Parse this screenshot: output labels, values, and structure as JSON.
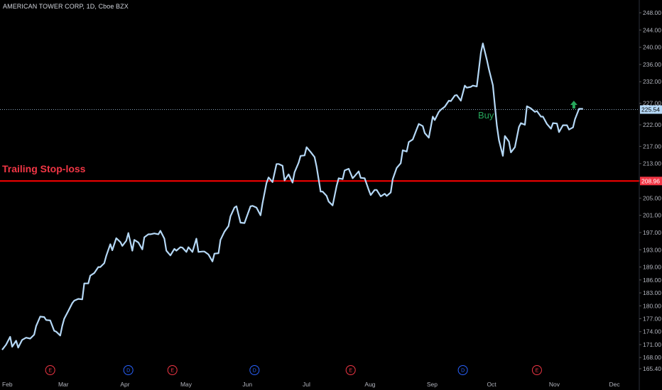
{
  "header": {
    "title": "AMERICAN TOWER CORP, 1D, Cboe BZX"
  },
  "chart_data": {
    "type": "line",
    "title": "AMERICAN TOWER CORP, 1D, Cboe BZX",
    "xlabel": "",
    "ylabel": "",
    "ylim": [
      164.4,
      250.4
    ],
    "grid": false,
    "y_ticks": [
      "248.00",
      "244.00",
      "240.00",
      "236.00",
      "232.00",
      "227.00",
      "222.00",
      "217.00",
      "213.00",
      "209.00",
      "205.00",
      "201.00",
      "197.00",
      "193.00",
      "189.00",
      "186.00",
      "183.00",
      "180.00",
      "177.00",
      "174.00",
      "171.00",
      "168.00",
      "165.40"
    ],
    "y_tick_values": [
      248,
      244,
      240,
      236,
      232,
      227,
      222,
      217,
      213,
      209,
      205,
      201,
      197,
      193,
      189,
      186,
      183,
      180,
      177,
      174,
      171,
      168,
      165.4
    ],
    "x_ticks": [
      {
        "label": "Feb",
        "day": 0
      },
      {
        "label": "Mar",
        "day": 28
      },
      {
        "label": "Apr",
        "day": 59
      },
      {
        "label": "May",
        "day": 89
      },
      {
        "label": "Jun",
        "day": 120
      },
      {
        "label": "Jul",
        "day": 150
      },
      {
        "label": "Aug",
        "day": 181
      },
      {
        "label": "Sep",
        "day": 212
      },
      {
        "label": "Oct",
        "day": 242
      },
      {
        "label": "Nov",
        "day": 273
      },
      {
        "label": "Dec",
        "day": 303
      }
    ],
    "x_range_days": [
      0,
      331
    ],
    "series": [
      {
        "name": "",
        "color": "#b5d8f6",
        "points": [
          [
            0,
            169.8
          ],
          [
            2,
            171.0
          ],
          [
            4,
            172.8
          ],
          [
            5,
            170.5
          ],
          [
            7,
            171.9
          ],
          [
            8,
            170.3
          ],
          [
            10,
            172.1
          ],
          [
            12,
            172.6
          ],
          [
            14,
            172.4
          ],
          [
            16,
            173.3
          ],
          [
            17,
            175.3
          ],
          [
            19,
            177.5
          ],
          [
            21,
            177.4
          ],
          [
            22,
            176.7
          ],
          [
            24,
            176.6
          ],
          [
            26,
            174.2
          ],
          [
            27,
            174.0
          ],
          [
            29,
            173.1
          ],
          [
            30,
            175.3
          ],
          [
            31,
            177.0
          ],
          [
            33,
            178.8
          ],
          [
            35,
            180.6
          ],
          [
            36,
            181.2
          ],
          [
            38,
            181.6
          ],
          [
            40,
            181.5
          ],
          [
            41,
            185.2
          ],
          [
            43,
            185.2
          ],
          [
            44,
            187.0
          ],
          [
            46,
            187.6
          ],
          [
            48,
            189.0
          ],
          [
            49,
            189.0
          ],
          [
            51,
            189.9
          ],
          [
            52,
            191.6
          ],
          [
            54,
            194.3
          ],
          [
            55,
            192.9
          ],
          [
            57,
            195.7
          ],
          [
            59,
            194.8
          ],
          [
            60,
            193.9
          ],
          [
            62,
            195.1
          ],
          [
            63,
            196.9
          ],
          [
            65,
            192.8
          ],
          [
            66,
            195.3
          ],
          [
            68,
            194.7
          ],
          [
            70,
            193.1
          ],
          [
            71,
            195.9
          ],
          [
            73,
            196.6
          ],
          [
            74,
            196.6
          ],
          [
            76,
            196.8
          ],
          [
            78,
            196.6
          ],
          [
            79,
            197.4
          ],
          [
            81,
            195.6
          ],
          [
            82,
            192.8
          ],
          [
            84,
            191.7
          ],
          [
            86,
            193.2
          ],
          [
            87,
            192.8
          ],
          [
            89,
            193.6
          ],
          [
            90,
            193.5
          ],
          [
            92,
            192.5
          ],
          [
            93,
            193.6
          ],
          [
            95,
            192.5
          ],
          [
            97,
            195.6
          ],
          [
            98,
            192.5
          ],
          [
            100,
            192.6
          ],
          [
            101,
            192.6
          ],
          [
            103,
            191.9
          ],
          [
            105,
            190.3
          ],
          [
            106,
            192.1
          ],
          [
            108,
            192.2
          ],
          [
            109,
            195.3
          ],
          [
            111,
            197.2
          ],
          [
            113,
            198.5
          ],
          [
            114,
            200.8
          ],
          [
            116,
            202.8
          ],
          [
            117,
            203.1
          ],
          [
            119,
            199.3
          ],
          [
            121,
            199.2
          ],
          [
            122,
            200.5
          ],
          [
            124,
            203.1
          ],
          [
            125,
            203.2
          ],
          [
            127,
            202.8
          ],
          [
            129,
            201.0
          ],
          [
            130,
            203.8
          ],
          [
            132,
            208.5
          ],
          [
            133,
            209.8
          ],
          [
            135,
            208.7
          ],
          [
            137,
            212.9
          ],
          [
            138,
            212.9
          ],
          [
            140,
            212.5
          ],
          [
            141,
            209.1
          ],
          [
            143,
            210.5
          ],
          [
            145,
            208.6
          ],
          [
            146,
            211.0
          ],
          [
            148,
            213.2
          ],
          [
            149,
            214.8
          ],
          [
            151,
            214.9
          ],
          [
            152,
            216.8
          ],
          [
            154,
            215.7
          ],
          [
            156,
            214.5
          ],
          [
            157,
            212.3
          ],
          [
            159,
            206.5
          ],
          [
            160,
            206.5
          ],
          [
            162,
            205.5
          ],
          [
            163,
            204.2
          ],
          [
            165,
            203.3
          ],
          [
            167,
            207.8
          ],
          [
            168,
            209.6
          ],
          [
            170,
            209.4
          ],
          [
            171,
            211.4
          ],
          [
            173,
            211.8
          ],
          [
            175,
            209.6
          ],
          [
            176,
            210.1
          ],
          [
            178,
            211.2
          ],
          [
            179,
            209.7
          ],
          [
            181,
            209.6
          ],
          [
            183,
            206.9
          ],
          [
            184,
            205.7
          ],
          [
            186,
            206.9
          ],
          [
            187,
            206.9
          ],
          [
            189,
            205.4
          ],
          [
            191,
            206.0
          ],
          [
            192,
            205.5
          ],
          [
            194,
            206.3
          ],
          [
            195,
            209.4
          ],
          [
            197,
            212.0
          ],
          [
            199,
            213.1
          ],
          [
            200,
            216.1
          ],
          [
            202,
            215.8
          ],
          [
            203,
            218.0
          ],
          [
            205,
            218.6
          ],
          [
            207,
            221.0
          ],
          [
            208,
            222.2
          ],
          [
            210,
            221.7
          ],
          [
            211,
            220.1
          ],
          [
            213,
            219.0
          ],
          [
            215,
            223.9
          ],
          [
            216,
            223.1
          ],
          [
            218,
            225.0
          ],
          [
            219,
            225.5
          ],
          [
            221,
            226.2
          ],
          [
            223,
            227.6
          ],
          [
            224,
            227.5
          ],
          [
            226,
            228.8
          ],
          [
            227,
            228.9
          ],
          [
            229,
            227.6
          ],
          [
            231,
            231.1
          ],
          [
            232,
            230.6
          ],
          [
            234,
            230.8
          ],
          [
            235,
            231.1
          ],
          [
            237,
            230.9
          ],
          [
            239,
            238.7
          ],
          [
            240,
            240.9
          ],
          [
            242,
            237.1
          ],
          [
            243,
            234.9
          ],
          [
            245,
            231.2
          ],
          [
            247,
            221.8
          ],
          [
            248,
            218.5
          ],
          [
            250,
            214.8
          ],
          [
            251,
            219.4
          ],
          [
            253,
            218.1
          ],
          [
            254,
            215.6
          ],
          [
            256,
            216.8
          ],
          [
            258,
            221.5
          ],
          [
            259,
            222.4
          ],
          [
            261,
            222.0
          ],
          [
            262,
            226.3
          ],
          [
            264,
            225.8
          ],
          [
            266,
            225.0
          ],
          [
            267,
            225.2
          ],
          [
            269,
            223.9
          ],
          [
            270,
            223.9
          ],
          [
            272,
            222.2
          ],
          [
            274,
            221.1
          ],
          [
            275,
            222.4
          ],
          [
            277,
            222.3
          ],
          [
            278,
            220.3
          ],
          [
            280,
            221.9
          ],
          [
            282,
            221.9
          ],
          [
            283,
            220.9
          ],
          [
            285,
            221.4
          ],
          [
            286,
            223.3
          ],
          [
            288,
            225.7
          ],
          [
            290,
            225.7
          ]
        ]
      }
    ],
    "trailing_stop": {
      "label": "Trailing Stop-loss",
      "value": 208.96,
      "value_label": "208.96",
      "color": "#ff0000"
    },
    "last_price": {
      "value": 225.54,
      "value_label": "225.54",
      "color": "#b5d8f6"
    },
    "buy_signal": {
      "label": "Buy",
      "day": 284,
      "color": "#26a65b"
    },
    "events": [
      {
        "letter": "E",
        "day": 24,
        "color": "#f23645"
      },
      {
        "letter": "D",
        "day": 63,
        "color": "#2962ff"
      },
      {
        "letter": "E",
        "day": 85,
        "color": "#f23645"
      },
      {
        "letter": "D",
        "day": 126,
        "color": "#2962ff"
      },
      {
        "letter": "E",
        "day": 174,
        "color": "#f23645"
      },
      {
        "letter": "D",
        "day": 230,
        "color": "#2962ff"
      },
      {
        "letter": "E",
        "day": 267,
        "color": "#f23645"
      }
    ]
  }
}
